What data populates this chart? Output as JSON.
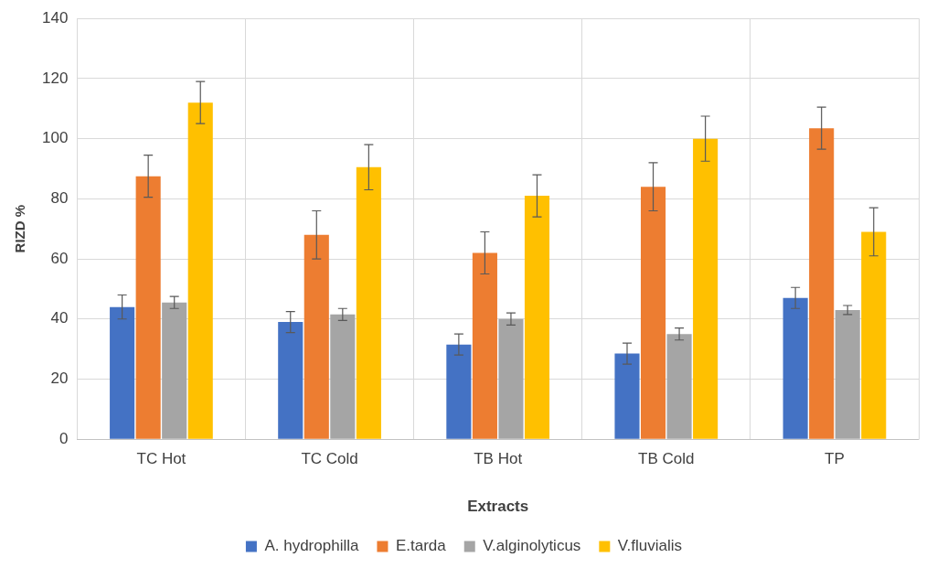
{
  "chart_data": {
    "type": "bar",
    "xlabel": "Extracts",
    "ylabel": "RIZD %",
    "categories": [
      "TC Hot",
      "TC Cold",
      "TB Hot",
      "TB Cold",
      "TP"
    ],
    "series": [
      {
        "name": "A. hydrophilla",
        "color": "#4472c4",
        "values": [
          44,
          39,
          31.5,
          28.5,
          47
        ],
        "errors": [
          4,
          3.5,
          3.5,
          3.5,
          3.5
        ]
      },
      {
        "name": "E.tarda",
        "color": "#ed7d31",
        "values": [
          87.5,
          68,
          62,
          84,
          103.5
        ],
        "errors": [
          7,
          8,
          7,
          8,
          7
        ]
      },
      {
        "name": "V.alginolyticus",
        "color": "#a5a5a5",
        "values": [
          45.5,
          41.5,
          40,
          35,
          43
        ],
        "errors": [
          2,
          2,
          2,
          2,
          1.5
        ]
      },
      {
        "name": "V.fluvialis",
        "color": "#ffc000",
        "values": [
          112,
          90.5,
          81,
          100,
          69
        ],
        "errors": [
          7,
          7.5,
          7,
          7.5,
          8
        ]
      }
    ],
    "ylim": [
      0,
      140
    ],
    "yticks": [
      0,
      20,
      40,
      60,
      80,
      100,
      120,
      140
    ],
    "grid": true,
    "legend": "bottom"
  }
}
